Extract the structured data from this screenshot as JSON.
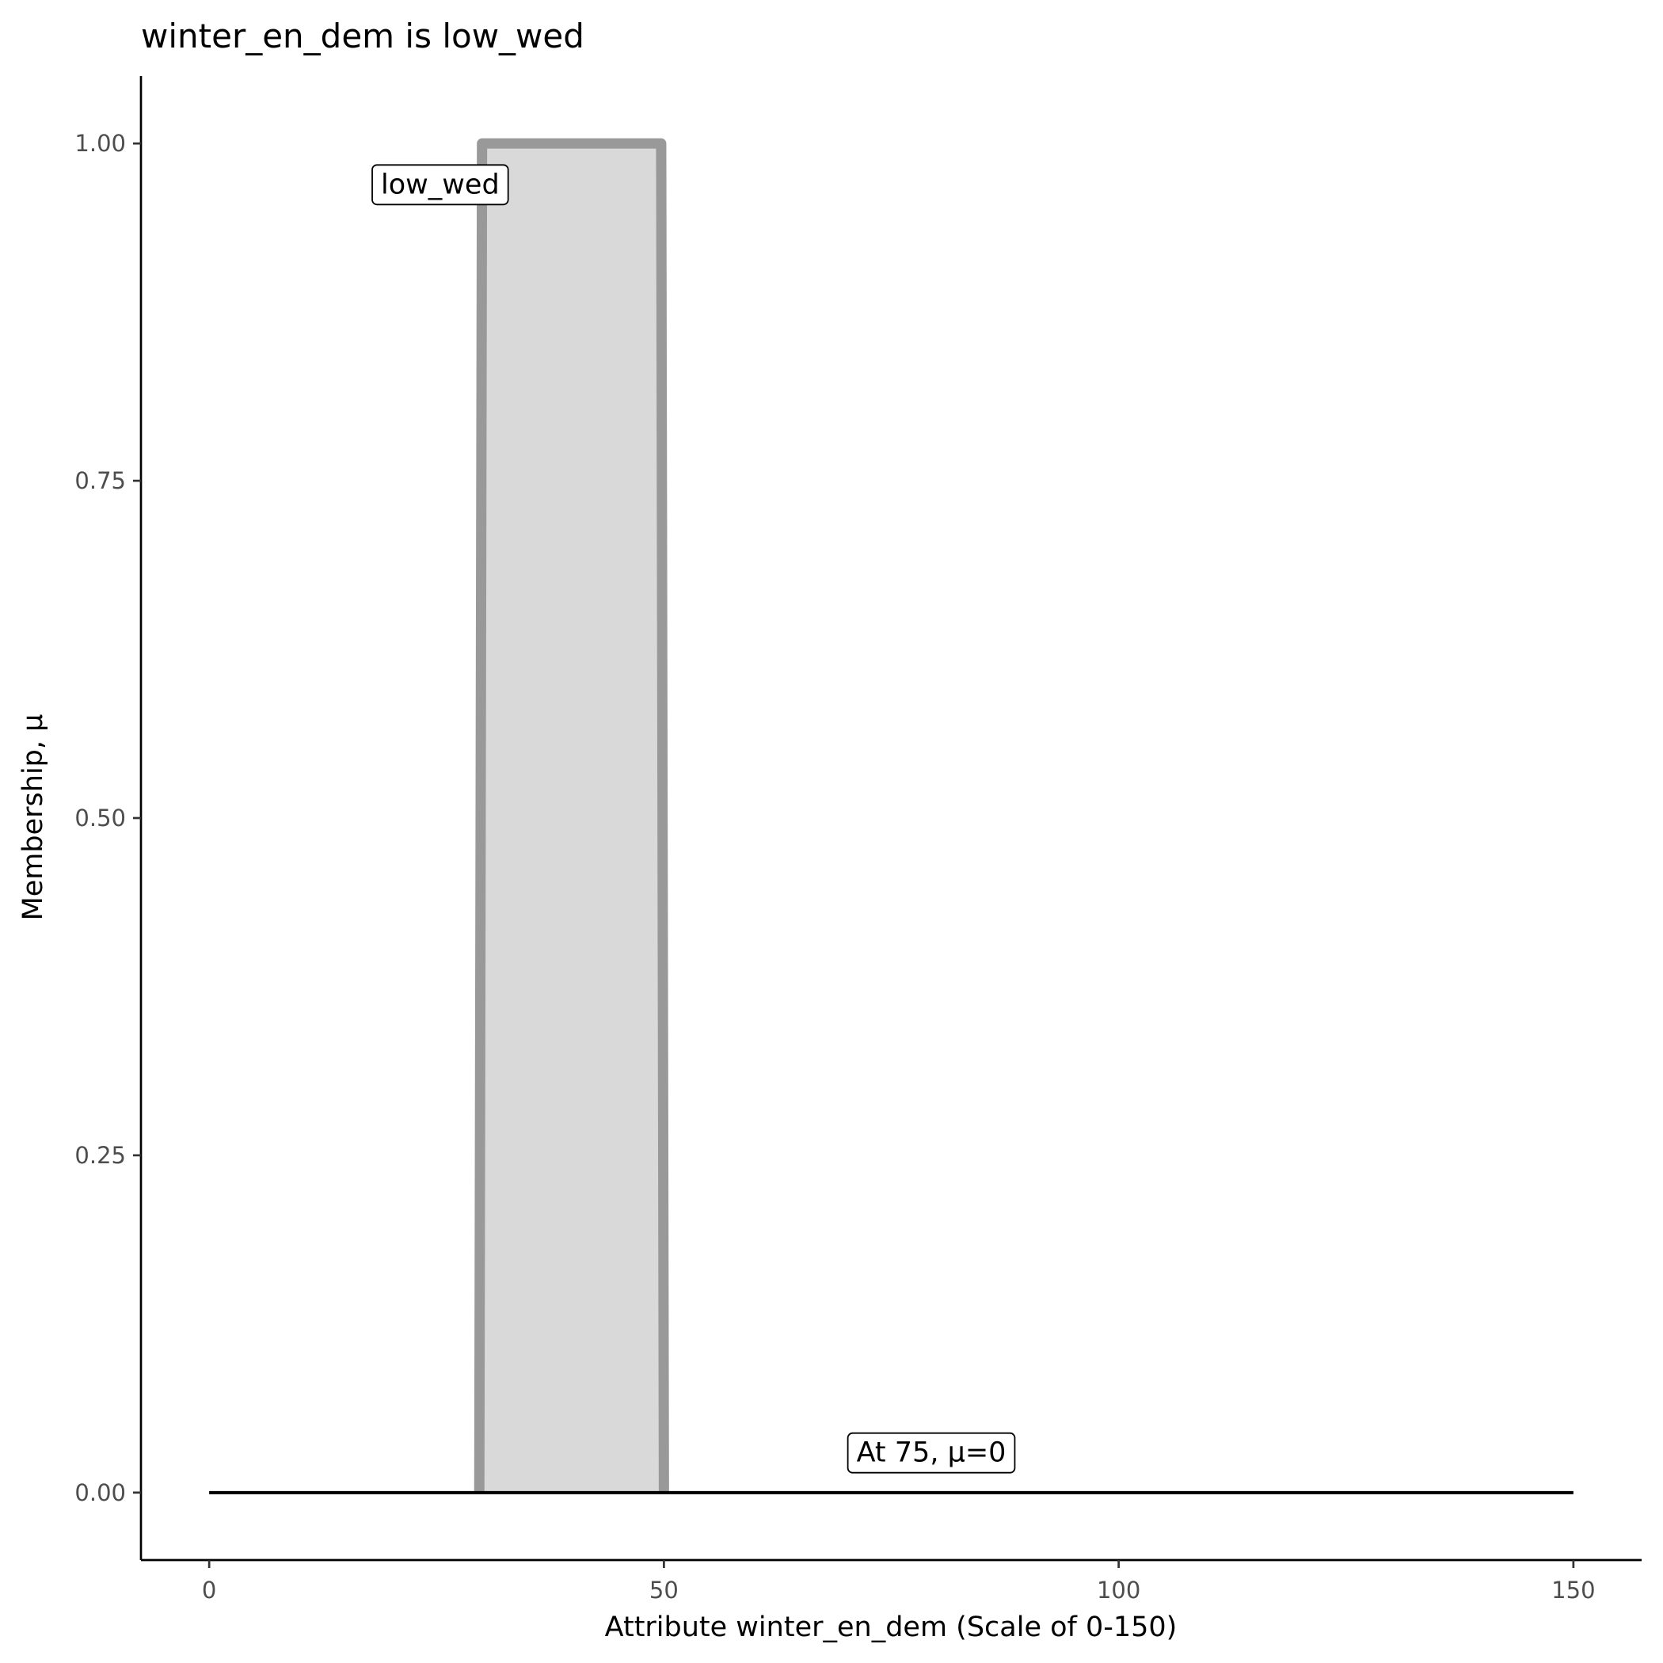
{
  "chart_data": {
    "type": "area",
    "title": "winter_en_dem is low_wed",
    "xlabel": "Attribute winter_en_dem (Scale of 0-150)",
    "ylabel": "Membership, μ",
    "xlim": [
      -7.5,
      157.5
    ],
    "ylim": [
      -0.05,
      1.05
    ],
    "x_ticks": [
      0,
      50,
      100,
      150
    ],
    "x_tick_labels": [
      "0",
      "50",
      "100",
      "150"
    ],
    "y_ticks": [
      0,
      0.25,
      0.5,
      0.75,
      1.0
    ],
    "y_tick_labels": [
      "0.00",
      "0.25",
      "0.50",
      "0.75",
      "1.00"
    ],
    "grid": false,
    "series": [
      {
        "name": "low_wed",
        "x": [
          29.7,
          30,
          49.7,
          50
        ],
        "y": [
          0,
          1,
          1,
          0
        ],
        "fill": "#d9d9d9",
        "stroke": "#999999"
      }
    ],
    "baseline": {
      "x": [
        0,
        150
      ],
      "y": [
        0,
        0
      ],
      "color": "#000000"
    },
    "annotations": [
      {
        "text": "low_wed",
        "x": 25.4,
        "y": 0.97
      },
      {
        "text": "At 75, μ=0",
        "x": 79.4,
        "y": 0.03
      }
    ]
  }
}
